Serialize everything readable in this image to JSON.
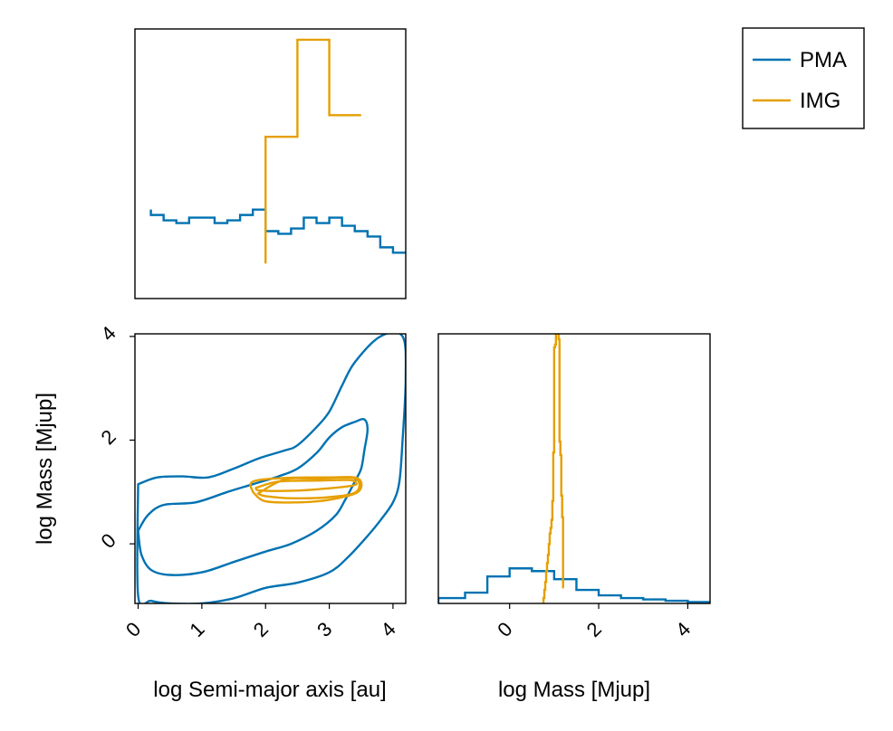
{
  "chart_data": {
    "type": "corner",
    "colors": {
      "PMA": "#0072B2",
      "IMG": "#E69F00"
    },
    "legend": {
      "position": "top-right",
      "entries": [
        {
          "label": "PMA",
          "color": "#0072B2"
        },
        {
          "label": "IMG",
          "color": "#E69F00"
        }
      ]
    },
    "panels": {
      "hist_a": {
        "type": "histogram",
        "xlim": [
          -0.05,
          4.2
        ],
        "ylim": [
          0,
          1
        ],
        "series": [
          {
            "name": "PMA",
            "bins": [
              0.2,
              0.4,
              0.6,
              0.8,
              1.0,
              1.2,
              1.4,
              1.6,
              1.8,
              2.0,
              2.2,
              2.4,
              2.6,
              2.8,
              3.0,
              3.2,
              3.4,
              3.6,
              3.8,
              4.0,
              4.2
            ],
            "heights": [
              0.31,
              0.29,
              0.28,
              0.3,
              0.3,
              0.28,
              0.29,
              0.31,
              0.33,
              0.25,
              0.24,
              0.26,
              0.3,
              0.28,
              0.3,
              0.27,
              0.25,
              0.23,
              0.19,
              0.17
            ],
            "start_height": 0.33
          },
          {
            "name": "IMG",
            "bins": [
              2.0,
              2.5,
              3.0,
              3.5
            ],
            "heights": [
              0.6,
              0.96,
              0.68
            ],
            "start_height": 0.13
          }
        ]
      },
      "joint": {
        "type": "contour",
        "xlim": [
          -0.05,
          4.2
        ],
        "ylim": [
          -1.15,
          4.05
        ],
        "xlabel": "log Semi-major axis [au]",
        "ylabel": "log Mass [Mjup]",
        "xticks": [
          "0",
          "1",
          "2",
          "3",
          "4"
        ],
        "yticks": [
          "0",
          "2",
          "4"
        ],
        "series": [
          {
            "name": "PMA",
            "contours": [
              [
                [
                  0.0,
                  1.15
                ],
                [
                  0.3,
                  1.28
                ],
                [
                  0.7,
                  1.3
                ],
                [
                  1.1,
                  1.28
                ],
                [
                  1.5,
                  1.45
                ],
                [
                  1.9,
                  1.65
                ],
                [
                  2.3,
                  1.8
                ],
                [
                  2.5,
                  1.9
                ],
                [
                  2.8,
                  2.25
                ],
                [
                  3.0,
                  2.55
                ],
                [
                  3.2,
                  3.05
                ],
                [
                  3.4,
                  3.5
                ],
                [
                  3.8,
                  4.0
                ],
                [
                  4.15,
                  4.0
                ],
                [
                  4.2,
                  3.2
                ],
                [
                  4.15,
                  2.0
                ],
                [
                  4.1,
                  1.2
                ],
                [
                  4.0,
                  0.8
                ],
                [
                  3.8,
                  0.45
                ],
                [
                  3.6,
                  0.15
                ],
                [
                  3.3,
                  -0.25
                ],
                [
                  3.0,
                  -0.55
                ],
                [
                  2.5,
                  -0.75
                ],
                [
                  2.0,
                  -0.85
                ],
                [
                  1.5,
                  -1.05
                ],
                [
                  1.0,
                  -1.15
                ],
                [
                  0.5,
                  -1.15
                ],
                [
                  0.2,
                  -1.1
                ],
                [
                  0.0,
                  -1.0
                ],
                [
                  0.0,
                  1.15
                ]
              ],
              [
                [
                  0.0,
                  0.25
                ],
                [
                  0.15,
                  0.55
                ],
                [
                  0.4,
                  0.75
                ],
                [
                  0.9,
                  0.8
                ],
                [
                  1.4,
                  1.0
                ],
                [
                  1.8,
                  1.15
                ],
                [
                  2.2,
                  1.3
                ],
                [
                  2.5,
                  1.45
                ],
                [
                  2.8,
                  1.75
                ],
                [
                  3.0,
                  2.05
                ],
                [
                  3.2,
                  2.25
                ],
                [
                  3.4,
                  2.35
                ],
                [
                  3.55,
                  2.4
                ],
                [
                  3.6,
                  2.2
                ],
                [
                  3.55,
                  1.8
                ],
                [
                  3.5,
                  1.45
                ],
                [
                  3.4,
                  1.2
                ],
                [
                  3.25,
                  0.85
                ],
                [
                  3.1,
                  0.55
                ],
                [
                  2.8,
                  0.25
                ],
                [
                  2.4,
                  0.0
                ],
                [
                  2.0,
                  -0.15
                ],
                [
                  1.5,
                  -0.35
                ],
                [
                  1.0,
                  -0.55
                ],
                [
                  0.5,
                  -0.6
                ],
                [
                  0.2,
                  -0.5
                ],
                [
                  0.05,
                  -0.2
                ],
                [
                  0.0,
                  0.25
                ]
              ]
            ]
          },
          {
            "name": "IMG",
            "contours": [
              [
                [
                  1.85,
                  1.08
                ],
                [
                  2.2,
                  1.2
                ],
                [
                  2.8,
                  1.22
                ],
                [
                  3.3,
                  1.23
                ],
                [
                  3.42,
                  1.18
                ],
                [
                  3.35,
                  1.12
                ],
                [
                  2.8,
                  1.05
                ],
                [
                  2.3,
                  1.02
                ],
                [
                  1.9,
                  1.03
                ],
                [
                  1.85,
                  1.08
                ]
              ],
              [
                [
                  1.88,
                  0.97
                ],
                [
                  2.3,
                  1.24
                ],
                [
                  2.8,
                  1.26
                ],
                [
                  3.4,
                  1.26
                ],
                [
                  3.42,
                  1.0
                ],
                [
                  3.0,
                  0.9
                ],
                [
                  2.4,
                  0.88
                ],
                [
                  2.0,
                  0.92
                ],
                [
                  1.88,
                  0.97
                ]
              ],
              [
                [
                  1.8,
                  1.0
                ],
                [
                  1.8,
                  1.2
                ],
                [
                  2.3,
                  1.27
                ],
                [
                  3.0,
                  1.28
                ],
                [
                  3.45,
                  1.26
                ],
                [
                  3.45,
                  1.0
                ],
                [
                  3.0,
                  0.85
                ],
                [
                  2.5,
                  0.8
                ],
                [
                  2.0,
                  0.82
                ],
                [
                  1.8,
                  1.0
                ]
              ]
            ]
          }
        ]
      },
      "hist_b": {
        "type": "histogram",
        "xlim": [
          -1.6,
          4.5
        ],
        "ylim": [
          0,
          1
        ],
        "xlabel": "log Mass [Mjup]",
        "xticks": [
          "0",
          "2",
          "4"
        ],
        "series": [
          {
            "name": "PMA",
            "bins": [
              -1.6,
              -1.0,
              -0.5,
              0.0,
              0.5,
              1.0,
              1.5,
              2.0,
              2.5,
              3.0,
              3.5,
              4.0,
              4.5
            ],
            "heights": [
              0.02,
              0.04,
              0.1,
              0.13,
              0.12,
              0.09,
              0.05,
              0.03,
              0.02,
              0.015,
              0.01,
              0.005
            ],
            "start_height": 0.0
          },
          {
            "name": "IMG",
            "bins": [
              0.76,
              0.78,
              0.8,
              0.82,
              0.84,
              0.86,
              0.88,
              0.9,
              0.92,
              0.94,
              0.96,
              0.98,
              1.0,
              1.02,
              1.04,
              1.06,
              1.08,
              1.1,
              1.12,
              1.14,
              1.16,
              1.18,
              1.2,
              1.22
            ],
            "heights": [
              0.02,
              0.05,
              0.08,
              0.12,
              0.15,
              0.18,
              0.22,
              0.26,
              0.28,
              0.31,
              0.38,
              0.56,
              0.95,
              0.96,
              1.0,
              1.0,
              1.0,
              0.98,
              0.6,
              0.55,
              0.4,
              0.32,
              0.06
            ],
            "start_height": 0.0
          }
        ]
      }
    }
  }
}
